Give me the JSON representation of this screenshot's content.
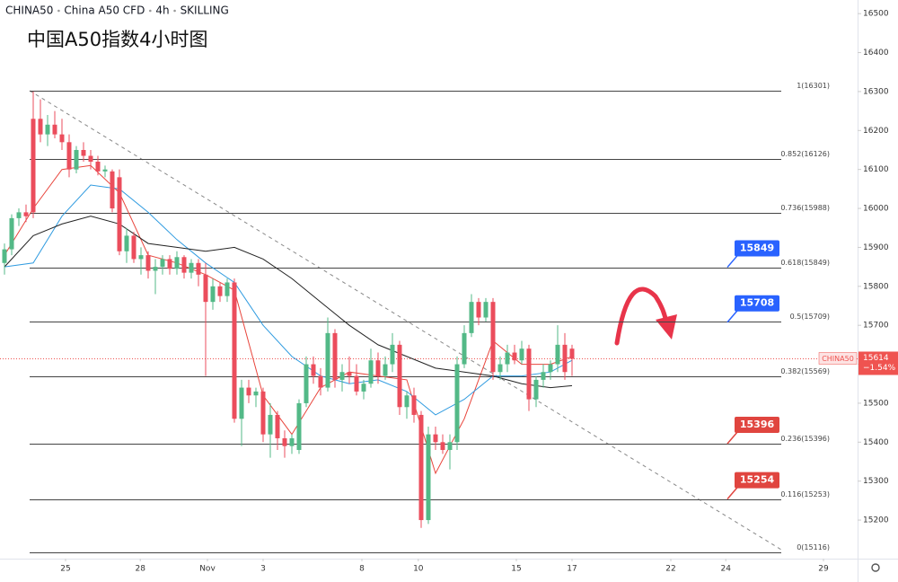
{
  "chart_data": {
    "type": "candlestick",
    "header": [
      "CHINA50",
      "China A50 CFD",
      "4h",
      "SKILLING"
    ],
    "title": "中国A50指数4小时图",
    "up_color": "#53b987",
    "down_color": "#eb4d5c",
    "ylim": [
      15101,
      16535
    ],
    "yticks": [
      15200,
      15300,
      15400,
      15500,
      15600,
      15700,
      15800,
      15900,
      16000,
      16100,
      16200,
      16300,
      16400,
      16500
    ],
    "xlim": [
      -0.625,
      118.75
    ],
    "xticks": [
      {
        "value": 8.5,
        "label": "25"
      },
      {
        "value": 18.9,
        "label": "28"
      },
      {
        "value": 28.25,
        "label": "Nov"
      },
      {
        "value": 36,
        "label": "3"
      },
      {
        "value": 49.75,
        "label": "8"
      },
      {
        "value": 57.6,
        "label": "10"
      },
      {
        "value": 71.25,
        "label": "15"
      },
      {
        "value": 79,
        "label": "17"
      },
      {
        "value": 92.75,
        "label": "22"
      },
      {
        "value": 100.4,
        "label": "24"
      },
      {
        "value": 114,
        "label": "29"
      }
    ],
    "grid": false,
    "candles": [
      [
        15860,
        15910,
        15830,
        15895
      ],
      [
        15895,
        15985,
        15880,
        15975
      ],
      [
        15975,
        16000,
        15955,
        15990
      ],
      [
        15990,
        16010,
        15965,
        15980
      ],
      [
        16230,
        16300,
        15975,
        15990
      ],
      [
        16230,
        16280,
        16170,
        16190
      ],
      [
        16190,
        16240,
        16160,
        16215
      ],
      [
        16215,
        16250,
        16180,
        16190
      ],
      [
        16190,
        16230,
        16150,
        16170
      ],
      [
        16170,
        16190,
        16080,
        16100
      ],
      [
        16100,
        16160,
        16090,
        16150
      ],
      [
        16150,
        16170,
        16120,
        16135
      ],
      [
        16135,
        16150,
        16100,
        16120
      ],
      [
        16120,
        16135,
        16085,
        16095
      ],
      [
        16095,
        16110,
        16080,
        16100
      ],
      [
        16095,
        16100,
        15990,
        16000
      ],
      [
        16080,
        16100,
        15880,
        15890
      ],
      [
        15890,
        15950,
        15860,
        15930
      ],
      [
        15930,
        15940,
        15860,
        15870
      ],
      [
        15870,
        15900,
        15830,
        15880
      ],
      [
        15880,
        15890,
        15820,
        15840
      ],
      [
        15840,
        15870,
        15780,
        15850
      ],
      [
        15850,
        15880,
        15830,
        15870
      ],
      [
        15870,
        15880,
        15830,
        15845
      ],
      [
        15845,
        15890,
        15830,
        15875
      ],
      [
        15875,
        15880,
        15820,
        15835
      ],
      [
        15835,
        15870,
        15820,
        15860
      ],
      [
        15860,
        15870,
        15800,
        15830
      ],
      [
        15830,
        15860,
        15570,
        15760
      ],
      [
        15760,
        15820,
        15740,
        15800
      ],
      [
        15800,
        15810,
        15760,
        15775
      ],
      [
        15775,
        15820,
        15760,
        15810
      ],
      [
        15810,
        15820,
        15450,
        15460
      ],
      [
        15460,
        15560,
        15390,
        15540
      ],
      [
        15540,
        15560,
        15500,
        15520
      ],
      [
        15520,
        15540,
        15490,
        15530
      ],
      [
        15530,
        15540,
        15400,
        15420
      ],
      [
        15420,
        15500,
        15360,
        15470
      ],
      [
        15470,
        15480,
        15380,
        15410
      ],
      [
        15410,
        15430,
        15360,
        15390
      ],
      [
        15390,
        15420,
        15370,
        15410
      ],
      [
        15380,
        15510,
        15370,
        15500
      ],
      [
        15500,
        15620,
        15490,
        15600
      ],
      [
        15600,
        15620,
        15550,
        15570
      ],
      [
        15570,
        15590,
        15520,
        15540
      ],
      [
        15540,
        15720,
        15530,
        15680
      ],
      [
        15680,
        15690,
        15540,
        15560
      ],
      [
        15560,
        15600,
        15530,
        15580
      ],
      [
        15580,
        15620,
        15550,
        15570
      ],
      [
        15570,
        15600,
        15520,
        15530
      ],
      [
        15530,
        15560,
        15510,
        15550
      ],
      [
        15550,
        15640,
        15540,
        15610
      ],
      [
        15610,
        15630,
        15550,
        15570
      ],
      [
        15570,
        15620,
        15560,
        15600
      ],
      [
        15600,
        15680,
        15580,
        15650
      ],
      [
        15650,
        15660,
        15470,
        15490
      ],
      [
        15490,
        15530,
        15460,
        15520
      ],
      [
        15520,
        15540,
        15450,
        15470
      ],
      [
        15470,
        15480,
        15180,
        15200
      ],
      [
        15200,
        15440,
        15190,
        15420
      ],
      [
        15420,
        15440,
        15380,
        15400
      ],
      [
        15400,
        15420,
        15370,
        15380
      ],
      [
        15380,
        15420,
        15330,
        15400
      ],
      [
        15400,
        15620,
        15380,
        15600
      ],
      [
        15600,
        15700,
        15590,
        15680
      ],
      [
        15680,
        15780,
        15670,
        15760
      ],
      [
        15760,
        15770,
        15700,
        15720
      ],
      [
        15720,
        15770,
        15710,
        15760
      ],
      [
        15760,
        15770,
        15560,
        15580
      ],
      [
        15580,
        15620,
        15560,
        15600
      ],
      [
        15600,
        15650,
        15580,
        15630
      ],
      [
        15630,
        15650,
        15600,
        15610
      ],
      [
        15610,
        15660,
        15600,
        15640
      ],
      [
        15640,
        15650,
        15480,
        15510
      ],
      [
        15510,
        15570,
        15490,
        15560
      ],
      [
        15560,
        15600,
        15540,
        15580
      ],
      [
        15580,
        15610,
        15560,
        15600
      ],
      [
        15600,
        15700,
        15580,
        15650
      ],
      [
        15650,
        15680,
        15560,
        15580
      ],
      [
        15640,
        15650,
        15570,
        15614
      ]
    ],
    "lines": [
      {
        "color": "#e8453c",
        "x": [
          0,
          4,
          8,
          12,
          16,
          20,
          24,
          28,
          32,
          36,
          40,
          44,
          48,
          52,
          56,
          60,
          64,
          68,
          72,
          76,
          79
        ],
        "values": [
          15880,
          16000,
          16100,
          16110,
          16040,
          15880,
          15860,
          15830,
          15790,
          15520,
          15420,
          15540,
          15580,
          15570,
          15560,
          15320,
          15460,
          15660,
          15600,
          15600,
          15620
        ]
      },
      {
        "color": "#2f9be0",
        "x": [
          0,
          4,
          8,
          12,
          16,
          20,
          24,
          28,
          32,
          36,
          40,
          44,
          48,
          52,
          56,
          60,
          64,
          68,
          72,
          76,
          79
        ],
        "values": [
          15850,
          15860,
          15980,
          16060,
          16050,
          15990,
          15920,
          15860,
          15810,
          15700,
          15620,
          15570,
          15550,
          15560,
          15530,
          15470,
          15510,
          15570,
          15570,
          15580,
          15610
        ]
      },
      {
        "color": "#222222",
        "x": [
          0,
          4,
          8,
          12,
          16,
          20,
          24,
          28,
          32,
          36,
          40,
          44,
          48,
          52,
          56,
          60,
          64,
          68,
          72,
          76,
          79
        ],
        "values": [
          15850,
          15930,
          15960,
          15980,
          15960,
          15910,
          15900,
          15890,
          15900,
          15870,
          15820,
          15760,
          15700,
          15650,
          15620,
          15590,
          15580,
          15570,
          15550,
          15540,
          15545
        ]
      }
    ],
    "fib_levels": [
      {
        "value": 16301,
        "label": "1(16301)"
      },
      {
        "value": 16126,
        "label": "0.852(16126)"
      },
      {
        "value": 15988,
        "label": "0.736(15988)"
      },
      {
        "value": 15849,
        "label": "0.618(15849)"
      },
      {
        "value": 15709,
        "label": "0.5(15709)"
      },
      {
        "value": 15569,
        "label": "0.382(15569)"
      },
      {
        "value": 15396,
        "label": "0.236(15396)"
      },
      {
        "value": 15253,
        "label": "0.116(15253)"
      },
      {
        "value": 15116,
        "label": "0(15116)"
      }
    ],
    "badges": [
      {
        "value": 15849,
        "color": "#2962ff"
      },
      {
        "value": 15708,
        "color": "#2962ff"
      },
      {
        "value": 15396,
        "color": "#e0453f"
      },
      {
        "value": 15254,
        "color": "#e0453f"
      }
    ],
    "last": {
      "name": "CHINA50",
      "value": 15614,
      "change": "−1.54%",
      "color": "#ef5350"
    }
  }
}
